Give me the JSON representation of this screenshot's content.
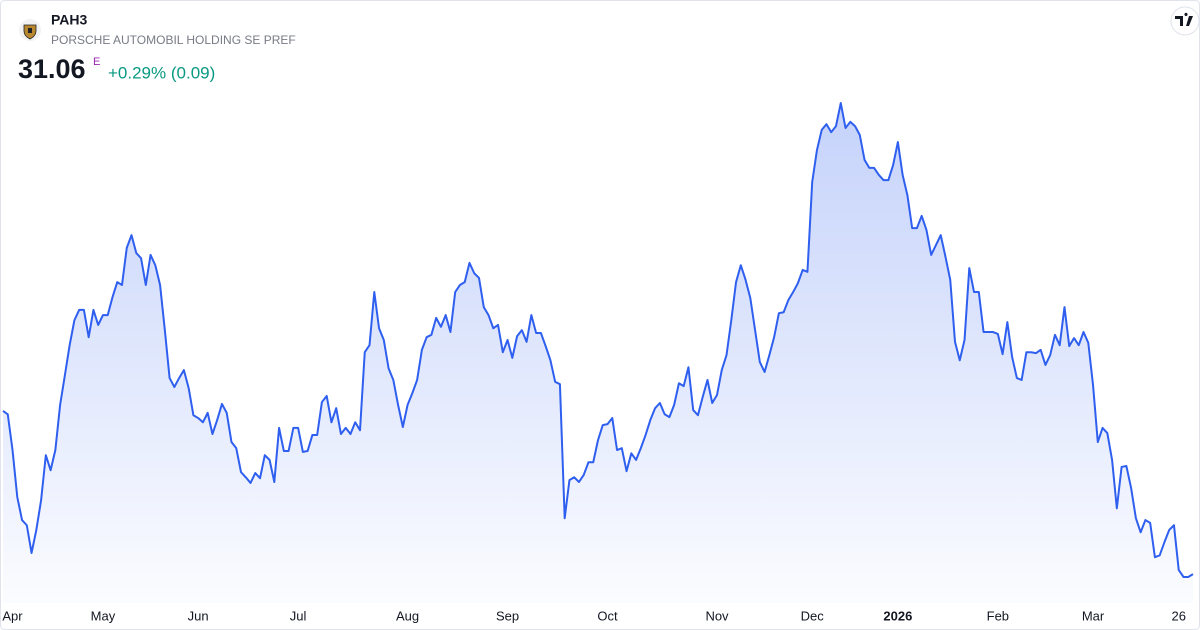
{
  "header": {
    "symbol": "PAH3",
    "name": "PORSCHE AUTOMOBIL HOLDING SE PREF",
    "price": 31.06,
    "flag": "E",
    "change": "+0.29% (0.09)"
  },
  "chart_data": {
    "type": "area",
    "series": [
      {
        "color": "#2f5fef",
        "values": [
          34.53,
          34.46,
          33.7,
          32.7,
          32.21,
          32.1,
          31.51,
          32.0,
          32.63,
          33.59,
          33.27,
          33.7,
          34.66,
          35.29,
          35.93,
          36.46,
          36.68,
          36.68,
          36.1,
          36.68,
          36.36,
          36.57,
          36.57,
          36.95,
          37.27,
          37.21,
          38.0,
          38.27,
          37.89,
          37.78,
          37.21,
          37.85,
          37.63,
          37.21,
          36.25,
          35.23,
          35.04,
          35.23,
          35.4,
          35.02,
          34.44,
          34.38,
          34.29,
          34.49,
          34.04,
          34.34,
          34.68,
          34.49,
          33.87,
          33.74,
          33.23,
          33.12,
          33.0,
          33.21,
          33.1,
          33.59,
          33.49,
          33.02,
          34.17,
          33.68,
          33.68,
          34.17,
          34.17,
          33.66,
          33.68,
          34.02,
          34.02,
          34.72,
          34.85,
          34.29,
          34.59,
          34.04,
          34.17,
          34.04,
          34.29,
          34.12,
          35.78,
          35.93,
          37.06,
          36.29,
          36.04,
          35.44,
          35.19,
          34.66,
          34.19,
          34.66,
          34.91,
          35.19,
          35.83,
          36.1,
          36.15,
          36.51,
          36.32,
          36.57,
          36.21,
          37.06,
          37.21,
          37.27,
          37.68,
          37.46,
          37.36,
          36.74,
          36.57,
          36.29,
          36.36,
          35.78,
          36.04,
          35.66,
          36.12,
          36.25,
          36.0,
          36.57,
          36.19,
          36.19,
          35.91,
          35.61,
          35.15,
          35.1,
          32.25,
          33.06,
          33.12,
          33.02,
          33.17,
          33.44,
          33.44,
          33.91,
          34.23,
          34.25,
          34.38,
          33.7,
          33.74,
          33.25,
          33.63,
          33.49,
          33.74,
          34.02,
          34.34,
          34.59,
          34.7,
          34.46,
          34.4,
          34.66,
          35.12,
          35.06,
          35.46,
          34.55,
          34.44,
          34.83,
          35.19,
          34.7,
          34.87,
          35.4,
          35.72,
          36.46,
          37.27,
          37.63,
          37.32,
          36.93,
          36.25,
          35.57,
          35.36,
          35.72,
          36.1,
          36.61,
          36.63,
          36.89,
          37.06,
          37.25,
          37.53,
          37.49,
          39.4,
          40.08,
          40.51,
          40.63,
          40.46,
          40.59,
          41.08,
          40.55,
          40.68,
          40.59,
          40.4,
          39.87,
          39.7,
          39.7,
          39.55,
          39.44,
          39.44,
          39.76,
          40.25,
          39.55,
          39.12,
          38.42,
          38.42,
          38.68,
          38.38,
          37.85,
          38.06,
          38.27,
          37.81,
          37.32,
          36.0,
          35.61,
          36.04,
          37.57,
          37.06,
          37.06,
          36.21,
          36.21,
          36.21,
          36.17,
          35.74,
          36.42,
          35.68,
          35.23,
          35.19,
          35.78,
          35.78,
          35.76,
          35.83,
          35.51,
          35.72,
          36.15,
          35.93,
          36.74,
          35.91,
          36.08,
          35.93,
          36.21,
          35.98,
          35.08,
          33.87,
          34.17,
          34.06,
          33.49,
          32.46,
          33.34,
          33.36,
          32.89,
          32.25,
          31.95,
          32.21,
          32.15,
          31.42,
          31.46,
          31.74,
          32.0,
          32.1,
          31.15,
          31.0,
          31.0,
          31.06
        ]
      }
    ],
    "ylim": [
      30.51,
      41.57
    ],
    "xticks": [
      {
        "value": 2,
        "label": "Apr"
      },
      {
        "value": 21,
        "label": "May"
      },
      {
        "value": 41,
        "label": "Jun"
      },
      {
        "value": 62,
        "label": "Jul"
      },
      {
        "value": 85,
        "label": "Aug"
      },
      {
        "value": 106,
        "label": "Sep"
      },
      {
        "value": 127,
        "label": "Oct"
      },
      {
        "value": 150,
        "label": "Nov"
      },
      {
        "value": 170,
        "label": "Dec"
      },
      {
        "value": 188,
        "label": "2026"
      },
      {
        "value": 209,
        "label": "Feb"
      },
      {
        "value": 229,
        "label": "Mar"
      },
      {
        "value": 247,
        "label": "26"
      }
    ]
  }
}
